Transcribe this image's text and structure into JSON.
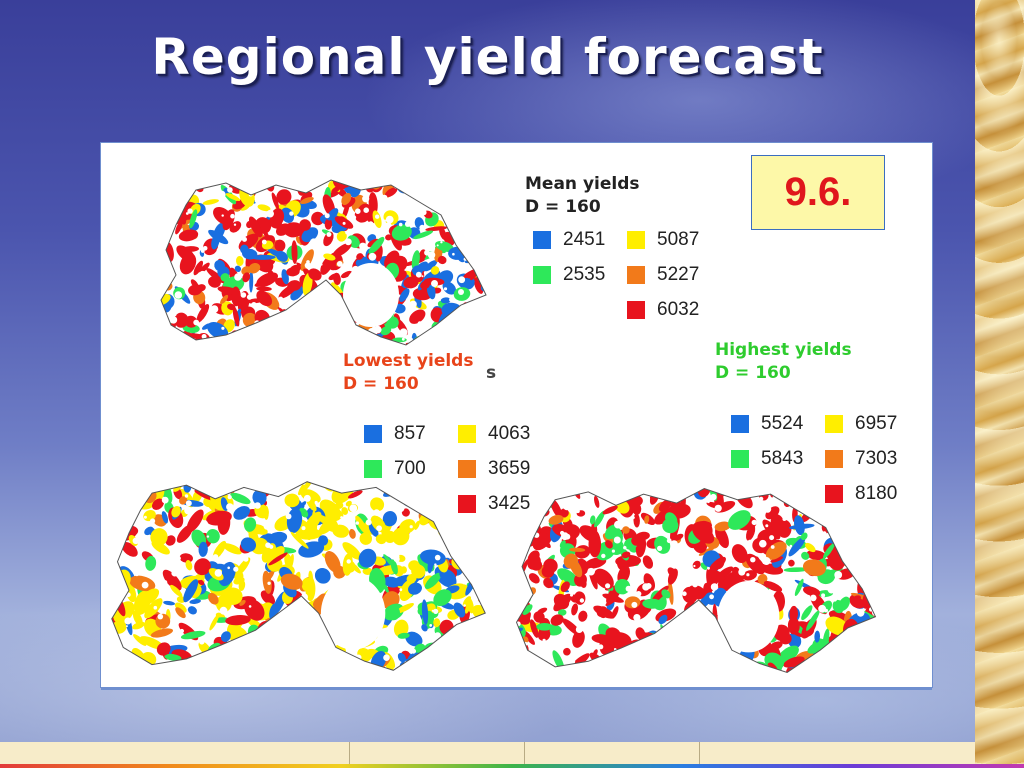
{
  "slide": {
    "title": "Regional yield forecast",
    "figure_label": "9.6."
  },
  "legend_colors": {
    "blue": "#1a6fe0",
    "green": "#2ee85a",
    "yellow": "#ffee00",
    "orange": "#f27a1a",
    "red": "#e8141e"
  },
  "maps": [
    {
      "id": "mean",
      "title_line1": "Mean yields",
      "title_line2": "D = 160",
      "title_color": "#222222",
      "legend": [
        {
          "value": "2451",
          "color": "blue"
        },
        {
          "value": "2535",
          "color": "green"
        },
        {
          "value": "5087",
          "color": "yellow"
        },
        {
          "value": "5227",
          "color": "orange"
        },
        {
          "value": "6032",
          "color": "red"
        }
      ]
    },
    {
      "id": "lowest",
      "title_line1": "Lowest yields",
      "title_line2": "D = 160",
      "title_color": "#e8441a",
      "legend": [
        {
          "value": "857",
          "color": "blue"
        },
        {
          "value": "700",
          "color": "green"
        },
        {
          "value": "4063",
          "color": "yellow"
        },
        {
          "value": "3659",
          "color": "orange"
        },
        {
          "value": "3425",
          "color": "red"
        }
      ]
    },
    {
      "id": "highest",
      "title_line1": "Highest yields",
      "title_line2": "D = 160",
      "title_color": "#2ecc2e",
      "legend": [
        {
          "value": "5524",
          "color": "blue"
        },
        {
          "value": "5843",
          "color": "green"
        },
        {
          "value": "6957",
          "color": "yellow"
        },
        {
          "value": "7303",
          "color": "orange"
        },
        {
          "value": "8180",
          "color": "red"
        }
      ]
    }
  ],
  "stray_glyph": "s"
}
